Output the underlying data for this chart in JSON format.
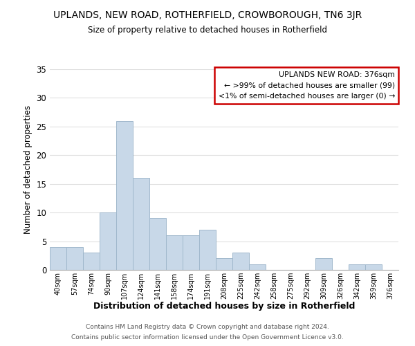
{
  "title": "UPLANDS, NEW ROAD, ROTHERFIELD, CROWBOROUGH, TN6 3JR",
  "subtitle": "Size of property relative to detached houses in Rotherfield",
  "xlabel": "Distribution of detached houses by size in Rotherfield",
  "ylabel": "Number of detached properties",
  "bar_color": "#c8d8e8",
  "bar_edge_color": "#a0b8cc",
  "bin_labels": [
    "40sqm",
    "57sqm",
    "74sqm",
    "90sqm",
    "107sqm",
    "124sqm",
    "141sqm",
    "158sqm",
    "174sqm",
    "191sqm",
    "208sqm",
    "225sqm",
    "242sqm",
    "258sqm",
    "275sqm",
    "292sqm",
    "309sqm",
    "326sqm",
    "342sqm",
    "359sqm",
    "376sqm"
  ],
  "counts": [
    4,
    4,
    3,
    10,
    26,
    16,
    9,
    6,
    6,
    7,
    2,
    3,
    1,
    0,
    0,
    0,
    2,
    0,
    1,
    1,
    0
  ],
  "ylim": [
    0,
    35
  ],
  "yticks": [
    0,
    5,
    10,
    15,
    20,
    25,
    30,
    35
  ],
  "annotation_box_title": "UPLANDS NEW ROAD: 376sqm",
  "annotation_line1": "← >99% of detached houses are smaller (99)",
  "annotation_line2": "<1% of semi-detached houses are larger (0) →",
  "annotation_box_color": "#ffffff",
  "annotation_box_edge_color": "#cc0000",
  "footer_line1": "Contains HM Land Registry data © Crown copyright and database right 2024.",
  "footer_line2": "Contains public sector information licensed under the Open Government Licence v3.0.",
  "background_color": "#ffffff",
  "grid_color": "#e0e0e0"
}
